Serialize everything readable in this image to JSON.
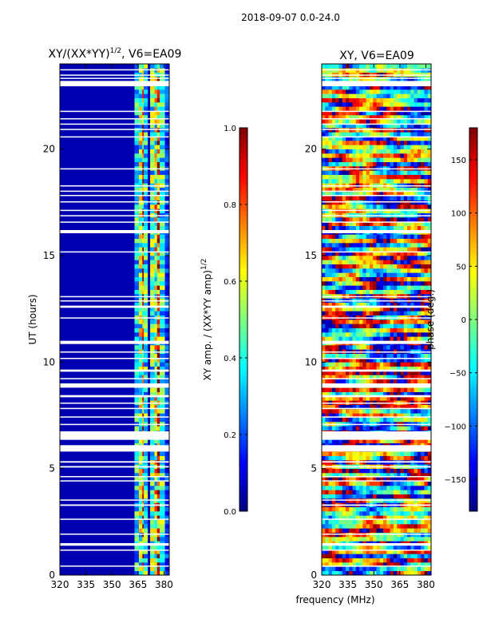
{
  "suptitle": "2018-09-07 0.0-24.0",
  "colormap": [
    "#00007f",
    "#0000ff",
    "#007fff",
    "#00ffff",
    "#7fff7f",
    "#ffff00",
    "#ff7f00",
    "#ff0000",
    "#7f0000"
  ],
  "chart_data": [
    {
      "type": "heatmap",
      "title_main": "XY/(XX*YY)",
      "title_sup": "1/2",
      "title_rest": ", V6=EA09",
      "xlabel": "",
      "ylabel": "UT (hours)",
      "xlim": [
        320,
        383
      ],
      "ylim": [
        0,
        24
      ],
      "xticks": [
        320,
        335,
        350,
        365,
        380
      ],
      "yticks": [
        0,
        5,
        10,
        15,
        20
      ],
      "value_range": [
        0.0,
        1.0
      ],
      "background_value": 0.05,
      "frequency_columns": [
        {
          "f0": 363,
          "f1": 365.5,
          "v": 0.45
        },
        {
          "f0": 365.5,
          "f1": 367.5,
          "v": 0.62
        },
        {
          "f0": 367.5,
          "f1": 368.3,
          "v": 0.95
        },
        {
          "f0": 368.3,
          "f1": 370.5,
          "v": 0.5
        },
        {
          "f0": 372,
          "f1": 374.5,
          "v": 0.55
        },
        {
          "f0": 374.5,
          "f1": 376,
          "v": 0.7
        },
        {
          "f0": 376,
          "f1": 377.5,
          "v": 0.95
        },
        {
          "f0": 377.5,
          "f1": 380.5,
          "v": 0.5
        },
        {
          "f0": 380.5,
          "f1": 383,
          "v": 0.22
        }
      ],
      "blank_ut_bands": [
        [
          0.4,
          0.45
        ],
        [
          1.15,
          1.2
        ],
        [
          1.38,
          1.5
        ],
        [
          1.9,
          1.95
        ],
        [
          2.6,
          2.65
        ],
        [
          3.25,
          3.32
        ],
        [
          3.5,
          3.55
        ],
        [
          4.4,
          4.45
        ],
        [
          4.6,
          4.65
        ],
        [
          5.05,
          5.12
        ],
        [
          5.28,
          5.35
        ],
        [
          5.8,
          6.1
        ],
        [
          6.35,
          6.75
        ],
        [
          7.05,
          7.1
        ],
        [
          7.4,
          7.45
        ],
        [
          7.8,
          7.85
        ],
        [
          8.05,
          8.1
        ],
        [
          8.35,
          8.45
        ],
        [
          8.8,
          9.0
        ],
        [
          9.2,
          9.25
        ],
        [
          9.55,
          9.65
        ],
        [
          10.15,
          10.2
        ],
        [
          10.45,
          10.5
        ],
        [
          10.85,
          11.0
        ],
        [
          12.05,
          12.1
        ],
        [
          12.55,
          12.65
        ],
        [
          12.85,
          12.9
        ],
        [
          13.05,
          13.1
        ],
        [
          15.15,
          15.2
        ],
        [
          16.05,
          16.2
        ],
        [
          16.55,
          16.6
        ],
        [
          16.85,
          16.9
        ],
        [
          17.1,
          17.15
        ],
        [
          17.5,
          17.55
        ],
        [
          17.8,
          17.85
        ],
        [
          18.0,
          18.05
        ],
        [
          18.25,
          18.3
        ],
        [
          19.05,
          19.1
        ],
        [
          20.55,
          20.6
        ],
        [
          20.9,
          20.95
        ],
        [
          21.15,
          21.2
        ],
        [
          21.4,
          21.45
        ],
        [
          21.75,
          21.8
        ],
        [
          22.95,
          23.2
        ],
        [
          23.3,
          23.35
        ],
        [
          23.45,
          23.5
        ],
        [
          23.7,
          23.75
        ]
      ]
    },
    {
      "type": "heatmap",
      "title": "XY, V6=EA09",
      "xlabel": "",
      "ylabel": "",
      "xlim": [
        320,
        383
      ],
      "ylim": [
        0,
        24
      ],
      "xticks": [
        320,
        335,
        350,
        365,
        380
      ],
      "yticks": [
        0,
        5,
        10,
        15,
        20
      ],
      "value_range": [
        -180,
        180
      ],
      "blank_ut_bands": [
        [
          0.4,
          0.45
        ],
        [
          1.15,
          1.2
        ],
        [
          1.38,
          1.5
        ],
        [
          1.9,
          1.95
        ],
        [
          2.6,
          2.65
        ],
        [
          3.25,
          3.32
        ],
        [
          3.5,
          3.55
        ],
        [
          4.4,
          4.45
        ],
        [
          4.6,
          4.65
        ],
        [
          5.05,
          5.12
        ],
        [
          5.28,
          5.35
        ],
        [
          5.8,
          6.1
        ],
        [
          6.35,
          6.75
        ],
        [
          7.05,
          7.1
        ],
        [
          7.4,
          7.45
        ],
        [
          7.8,
          7.85
        ],
        [
          8.05,
          8.1
        ],
        [
          8.35,
          8.45
        ],
        [
          8.8,
          9.0
        ],
        [
          9.2,
          9.25
        ],
        [
          9.55,
          9.65
        ],
        [
          10.15,
          10.2
        ],
        [
          10.45,
          10.5
        ],
        [
          10.85,
          11.0
        ],
        [
          12.05,
          12.1
        ],
        [
          12.55,
          12.65
        ],
        [
          12.85,
          12.9
        ],
        [
          13.05,
          13.1
        ],
        [
          15.15,
          15.2
        ],
        [
          16.05,
          16.2
        ],
        [
          16.55,
          16.6
        ],
        [
          16.85,
          16.9
        ],
        [
          17.1,
          17.15
        ],
        [
          17.5,
          17.55
        ],
        [
          17.8,
          17.85
        ],
        [
          18.0,
          18.05
        ],
        [
          18.25,
          18.3
        ],
        [
          19.05,
          19.1
        ],
        [
          20.55,
          20.6
        ],
        [
          20.9,
          20.95
        ],
        [
          21.15,
          21.2
        ],
        [
          21.4,
          21.45
        ],
        [
          21.75,
          21.8
        ],
        [
          22.95,
          23.2
        ],
        [
          23.3,
          23.35
        ],
        [
          23.45,
          23.5
        ],
        [
          23.7,
          23.75
        ]
      ]
    },
    {
      "type": "colorbar",
      "label_main": "XY amp. / (XX*YY amp)",
      "label_sup": "1/2",
      "range": [
        0.0,
        1.0
      ],
      "ticks": [
        "0.0",
        "0.2",
        "0.4",
        "0.6",
        "0.8",
        "1.0"
      ]
    },
    {
      "type": "colorbar",
      "label": "phase (deg.)",
      "range": [
        -180,
        180
      ],
      "ticks": [
        "−150",
        "−100",
        "−50",
        "0",
        "50",
        "100",
        "150"
      ]
    }
  ],
  "shared_xlabel": "frequency (MHz)"
}
